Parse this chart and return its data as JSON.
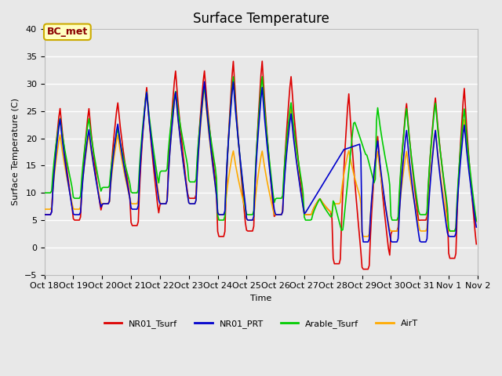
{
  "title": "Surface Temperature",
  "ylabel": "Surface Temperature (C)",
  "xlabel": "Time",
  "ylim": [
    -5,
    40
  ],
  "figsize": [
    6.4,
    4.8
  ],
  "dpi": 100,
  "background_color": "#e8e8e8",
  "plot_bg_color": "#e8e8e8",
  "grid_color": "white",
  "annotation_text": "BC_met",
  "annotation_color": "#8b0000",
  "annotation_bg": "#ffffc0",
  "annotation_border": "#ccaa00",
  "series": {
    "NR01_Tsurf": {
      "color": "#dd0000",
      "lw": 1.2
    },
    "NR01_PRT": {
      "color": "#0000cc",
      "lw": 1.2
    },
    "Arable_Tsurf": {
      "color": "#00cc00",
      "lw": 1.2
    },
    "AirT": {
      "color": "#ffaa00",
      "lw": 1.2
    }
  },
  "xtick_labels": [
    "Oct 18",
    "Oct 19",
    "Oct 20",
    "Oct 21",
    "Oct 22",
    "Oct 23",
    "Oct 24",
    "Oct 25",
    "Oct 26",
    "Oct 27",
    "Oct 28",
    "Oct 29",
    "Oct 30",
    "Oct 31",
    "Nov 1",
    "Nov 2"
  ],
  "xtick_positions": [
    0,
    24,
    48,
    72,
    96,
    120,
    144,
    168,
    192,
    216,
    240,
    264,
    288,
    312,
    336,
    360
  ],
  "yticks": [
    -5,
    0,
    5,
    10,
    15,
    20,
    25,
    30,
    35,
    40
  ],
  "title_fontsize": 12,
  "label_fontsize": 8,
  "tick_fontsize": 8,
  "legend_fontsize": 8
}
